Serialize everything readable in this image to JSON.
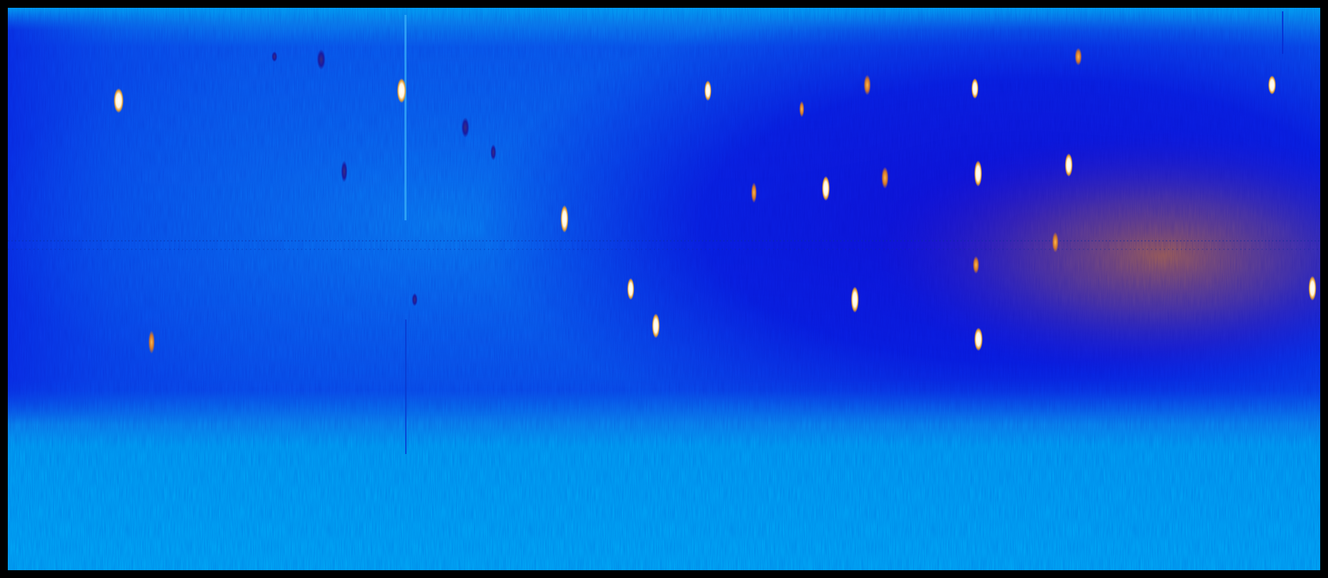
{
  "image": {
    "description_colors": {
      "background_light": "#00aaf5",
      "band_blue": "#0a5cf0",
      "deep_blue": "#0a1ee8",
      "warm_glow": "#b4603a",
      "frame": "#000000"
    },
    "spots": [
      {
        "kind": "white"
      },
      {
        "kind": "white"
      },
      {
        "kind": "white"
      },
      {
        "kind": "white"
      },
      {
        "kind": "white"
      },
      {
        "kind": "white"
      },
      {
        "kind": "white"
      },
      {
        "kind": "white"
      },
      {
        "kind": "white"
      },
      {
        "kind": "white"
      },
      {
        "kind": "white"
      },
      {
        "kind": "white"
      },
      {
        "kind": "white"
      },
      {
        "kind": "white"
      },
      {
        "kind": "orange"
      },
      {
        "kind": "orange"
      },
      {
        "kind": "orange"
      },
      {
        "kind": "orange"
      },
      {
        "kind": "orange"
      },
      {
        "kind": "orange"
      },
      {
        "kind": "orange"
      },
      {
        "kind": "orange"
      },
      {
        "kind": "dark"
      },
      {
        "kind": "dark"
      },
      {
        "kind": "dark"
      },
      {
        "kind": "dark"
      },
      {
        "kind": "dark"
      },
      {
        "kind": "dark"
      }
    ]
  }
}
